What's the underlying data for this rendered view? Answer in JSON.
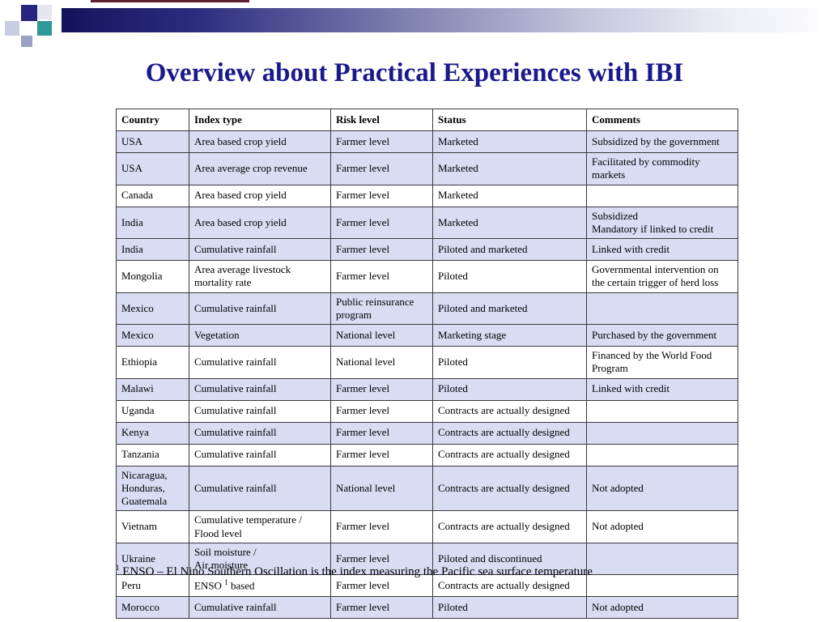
{
  "title": "Overview about Practical Experiences with IBI",
  "theme": {
    "title_color": "#1a1a8c",
    "band_dark": "#13135c",
    "band_light": "#fbfbfd",
    "row_shade": "#dadcf3",
    "maroon_line": "#5e1f2f",
    "ornament_navy": "#26267e",
    "ornament_teal": "#2e989b",
    "ornament_gray": "#9aa1c4"
  },
  "table": {
    "headers": [
      "Country",
      "Index type",
      "Risk level",
      "Status",
      "Comments"
    ],
    "rows": [
      {
        "country": "USA",
        "index_type": "Area based crop yield",
        "risk_level": "Farmer level",
        "status": "Marketed",
        "comments": "Subsidized by the government",
        "shaded": true
      },
      {
        "country": "USA",
        "index_type": "Area average crop revenue",
        "risk_level": "Farmer level",
        "status": "Marketed",
        "comments": "Facilitated by commodity markets",
        "shaded": true
      },
      {
        "country": "Canada",
        "index_type": "Area based crop yield",
        "risk_level": "Farmer level",
        "status": "Marketed",
        "comments": "",
        "shaded": false
      },
      {
        "country": "India",
        "index_type": "Area based crop yield",
        "risk_level": "Farmer level",
        "status": "Marketed",
        "comments": "Subsidized\nMandatory if linked to credit",
        "shaded": true
      },
      {
        "country": "India",
        "index_type": "Cumulative rainfall",
        "risk_level": "Farmer level",
        "status": "Piloted and marketed",
        "comments": "Linked with credit",
        "shaded": true
      },
      {
        "country": "Mongolia",
        "index_type": "Area average livestock mortality rate",
        "risk_level": "Farmer level",
        "status": "Piloted",
        "comments": "Governmental intervention on the certain trigger of herd loss",
        "shaded": false
      },
      {
        "country": "Mexico",
        "index_type": "Cumulative rainfall",
        "risk_level": "Public reinsurance program",
        "status": "Piloted and marketed",
        "comments": "",
        "shaded": true
      },
      {
        "country": "Mexico",
        "index_type": "Vegetation",
        "risk_level": "National level",
        "status": "Marketing stage",
        "comments": "Purchased by the government",
        "shaded": true
      },
      {
        "country": "Ethiopia",
        "index_type": "Cumulative rainfall",
        "risk_level": "National level",
        "status": "Piloted",
        "comments": "Financed by the World Food Program",
        "shaded": false
      },
      {
        "country": "Malawi",
        "index_type": "Cumulative rainfall",
        "risk_level": "Farmer level",
        "status": "Piloted",
        "comments": "Linked with credit",
        "shaded": true
      },
      {
        "country": "Uganda",
        "index_type": "Cumulative rainfall",
        "risk_level": "Farmer level",
        "status": "Contracts are actually designed",
        "comments": "",
        "shaded": false
      },
      {
        "country": "Kenya",
        "index_type": "Cumulative rainfall",
        "risk_level": "Farmer level",
        "status": "Contracts are actually designed",
        "comments": "",
        "shaded": true
      },
      {
        "country": "Tanzania",
        "index_type": "Cumulative rainfall",
        "risk_level": "Farmer level",
        "status": "Contracts are actually designed",
        "comments": "",
        "shaded": false
      },
      {
        "country": "Nicaragua,\nHonduras,\nGuatemala",
        "index_type": "Cumulative rainfall",
        "risk_level": "National level",
        "status": "Contracts are actually designed",
        "comments": "Not adopted",
        "shaded": true
      },
      {
        "country": "Vietnam",
        "index_type": "Cumulative temperature /\nFlood level",
        "risk_level": "Farmer level",
        "status": "Contracts are actually designed",
        "comments": "Not adopted",
        "shaded": false
      },
      {
        "country": "Ukraine",
        "index_type": "Soil moisture /\nAir moisture",
        "risk_level": "Farmer level",
        "status": "Piloted and discontinued",
        "comments": "",
        "shaded": true
      },
      {
        "country": "Peru",
        "index_type": "ENSO ^1 based",
        "risk_level": "Farmer level",
        "status": "Contracts are actually designed",
        "comments": "",
        "shaded": false
      },
      {
        "country": "Morocco",
        "index_type": "Cumulative rainfall",
        "risk_level": "Farmer level",
        "status": "Piloted",
        "comments": "Not adopted",
        "shaded": true
      }
    ]
  },
  "footnote": {
    "sup": "1",
    "text": "ENSO – El Nino Southern Oscillation is the index measuring the Pacific sea surface temperature"
  }
}
